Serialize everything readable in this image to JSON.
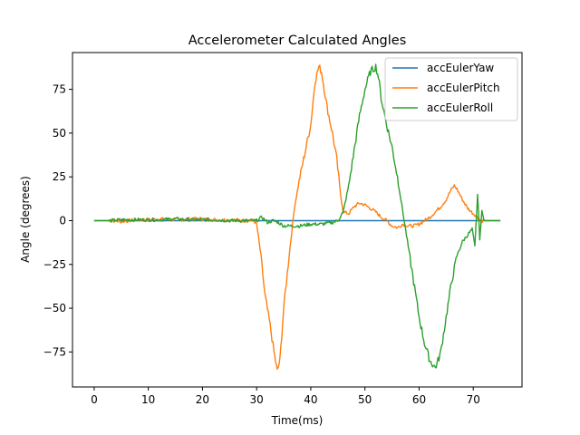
{
  "chart_data": {
    "type": "line",
    "title": "Accelerometer Calculated Angles",
    "xlabel": "Time(ms)",
    "ylabel": "Angle (degrees)",
    "xlim": [
      -4,
      79
    ],
    "ylim": [
      -95,
      96
    ],
    "xticks": [
      0,
      10,
      20,
      30,
      40,
      50,
      60,
      70
    ],
    "yticks": [
      -75,
      -50,
      -25,
      0,
      25,
      50,
      75
    ],
    "grid": false,
    "legend_position": "upper right",
    "series": [
      {
        "name": "accEulerYaw",
        "color": "#1f77b4",
        "x": [
          0,
          10,
          20,
          30,
          40,
          50,
          60,
          70,
          75
        ],
        "y": [
          0,
          0,
          0,
          0,
          0,
          0,
          0,
          0,
          0
        ]
      },
      {
        "name": "accEulerPitch",
        "color": "#ff7f0e",
        "x": [
          0,
          2.5,
          3,
          5,
          8,
          10,
          12,
          15,
          18,
          20,
          22,
          25,
          28,
          29.5,
          30,
          30.8,
          31.5,
          32.5,
          33.2,
          33.8,
          34.3,
          35,
          36,
          37,
          38,
          39,
          40,
          40.8,
          41.5,
          42,
          43,
          44,
          44.8,
          45.5,
          46,
          47,
          48,
          49,
          50,
          51,
          52,
          53,
          54,
          55,
          56,
          57,
          58,
          59,
          60,
          61,
          62,
          63,
          64,
          65,
          65.8,
          66.5,
          67,
          68,
          69,
          70,
          70.5,
          71,
          71.5,
          72,
          73,
          75
        ],
        "y": [
          0,
          0,
          0,
          -0.5,
          0.5,
          0.5,
          1,
          0.5,
          1,
          1,
          0.5,
          0.5,
          0,
          0,
          -2,
          -20,
          -42,
          -60,
          -75,
          -86,
          -80,
          -50,
          -20,
          8,
          25,
          40,
          55,
          80,
          88,
          85,
          65,
          50,
          35,
          15,
          5,
          4,
          8,
          10,
          9,
          7,
          5,
          2,
          0,
          -3,
          -4,
          -2,
          -3,
          -3,
          -2,
          0,
          2,
          5,
          8,
          12,
          17,
          20,
          18,
          12,
          7,
          4,
          3,
          1,
          0,
          0,
          0,
          0
        ]
      },
      {
        "name": "accEulerRoll",
        "color": "#2ca02c",
        "x": [
          0,
          3,
          5,
          8,
          10,
          12,
          15,
          18,
          20,
          22,
          25,
          28,
          30,
          31,
          32,
          33,
          34,
          35,
          38,
          40,
          42,
          44,
          45,
          46,
          47,
          48,
          49,
          50,
          51,
          52,
          52.5,
          53,
          54,
          55,
          56,
          57,
          58,
          59,
          60,
          61,
          62,
          63,
          63.5,
          64,
          65,
          66,
          67,
          68,
          69,
          69.8,
          70.3,
          70.8,
          71.2,
          71.6,
          72,
          73,
          75
        ],
        "y": [
          0,
          0,
          0.5,
          0.5,
          0.5,
          0.5,
          1,
          0.5,
          0.5,
          0.5,
          0,
          0,
          0,
          2,
          -1,
          0,
          -1,
          -3,
          -3,
          -2,
          -2,
          -1,
          0,
          5,
          20,
          40,
          60,
          75,
          85,
          88,
          82,
          70,
          55,
          42,
          25,
          5,
          -15,
          -35,
          -55,
          -70,
          -80,
          -84,
          -80,
          -75,
          -55,
          -35,
          -20,
          -12,
          -8,
          -5,
          -15,
          15,
          -10,
          5,
          0,
          0,
          0
        ]
      }
    ]
  }
}
